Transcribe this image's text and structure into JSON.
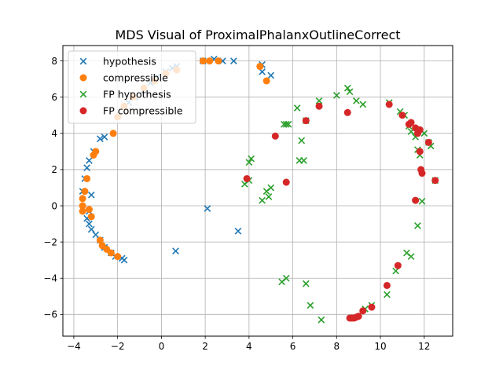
{
  "chart_data": {
    "type": "scatter",
    "title": "MDS Visual of ProximalPhalanxOutlineCorrect",
    "xlabel": "",
    "ylabel": "",
    "xlim": [
      -4.5,
      13.3
    ],
    "ylim": [
      -7.2,
      8.85
    ],
    "xticks": [
      -4,
      -2,
      0,
      2,
      4,
      6,
      8,
      10,
      12
    ],
    "yticks": [
      -6,
      -4,
      -2,
      0,
      2,
      4,
      6,
      8
    ],
    "xtick_labels": [
      "−4",
      "−2",
      "0",
      "2",
      "4",
      "6",
      "8",
      "10",
      "12"
    ],
    "ytick_labels": [
      "−6",
      "−4",
      "−2",
      "0",
      "2",
      "4",
      "6",
      "8"
    ],
    "grid": true,
    "legend_position": "top-left",
    "series": [
      {
        "name": "hypothesis",
        "marker": "x",
        "color": "#1f77b4",
        "points": [
          [
            -3.6,
            0.8
          ],
          [
            -3.5,
            1.5
          ],
          [
            -3.4,
            2.1
          ],
          [
            -3.3,
            2.5
          ],
          [
            -3.1,
            3.0
          ],
          [
            -2.8,
            3.7
          ],
          [
            -2.6,
            3.8
          ],
          [
            -3.2,
            0.6
          ],
          [
            -3.3,
            -0.3
          ],
          [
            -3.4,
            -0.7
          ],
          [
            -3.3,
            -1.0
          ],
          [
            -3.2,
            -1.3
          ],
          [
            -3.0,
            -1.6
          ],
          [
            -2.8,
            -1.9
          ],
          [
            -2.6,
            -2.3
          ],
          [
            -2.3,
            -2.6
          ],
          [
            -2.1,
            -2.8
          ],
          [
            -1.8,
            -2.9
          ],
          [
            -1.7,
            -3.0
          ],
          [
            -1.5,
            5.7
          ],
          [
            -1.2,
            6.0
          ],
          [
            -0.8,
            6.4
          ],
          [
            -0.5,
            6.8
          ],
          [
            -0.2,
            7.1
          ],
          [
            0.2,
            7.4
          ],
          [
            0.5,
            7.6
          ],
          [
            0.7,
            7.7
          ],
          [
            1.9,
            8.0
          ],
          [
            2.4,
            8.1
          ],
          [
            2.8,
            8.0
          ],
          [
            3.3,
            8.0
          ],
          [
            4.6,
            7.8
          ],
          [
            4.6,
            7.4
          ],
          [
            5.0,
            7.2
          ],
          [
            2.1,
            -0.15
          ],
          [
            3.5,
            -1.4
          ],
          [
            0.65,
            -2.5
          ]
        ]
      },
      {
        "name": "compressible",
        "marker": "o",
        "color": "#ff7f0e",
        "points": [
          [
            -3.6,
            0.4
          ],
          [
            -3.6,
            0.0
          ],
          [
            -3.6,
            -0.3
          ],
          [
            -3.5,
            0.8
          ],
          [
            -3.4,
            1.5
          ],
          [
            -3.3,
            -0.2
          ],
          [
            -3.2,
            -0.6
          ],
          [
            -3.1,
            2.8
          ],
          [
            -3.0,
            3.0
          ],
          [
            -2.8,
            -1.9
          ],
          [
            -2.7,
            -2.2
          ],
          [
            -2.5,
            -2.4
          ],
          [
            -2.3,
            -2.6
          ],
          [
            -2.0,
            -2.8
          ],
          [
            -2.2,
            4.0
          ],
          [
            -2.0,
            4.9
          ],
          [
            -1.7,
            5.5
          ],
          [
            -1.3,
            6.0
          ],
          [
            -0.8,
            6.5
          ],
          [
            -0.3,
            6.9
          ],
          [
            0.2,
            7.3
          ],
          [
            0.7,
            7.5
          ],
          [
            1.9,
            8.0
          ],
          [
            2.2,
            8.0
          ],
          [
            2.6,
            8.0
          ],
          [
            4.5,
            7.7
          ],
          [
            4.8,
            6.9
          ]
        ]
      },
      {
        "name": "FP hypothesis",
        "marker": "x",
        "color": "#2ca02c",
        "points": [
          [
            3.8,
            1.2
          ],
          [
            4.0,
            2.4
          ],
          [
            4.1,
            2.6
          ],
          [
            4.0,
            1.4
          ],
          [
            4.6,
            0.3
          ],
          [
            4.8,
            0.8
          ],
          [
            4.9,
            0.5
          ],
          [
            5.0,
            1.0
          ],
          [
            5.6,
            4.5
          ],
          [
            5.7,
            4.5
          ],
          [
            5.8,
            4.5
          ],
          [
            6.2,
            5.4
          ],
          [
            6.3,
            2.5
          ],
          [
            6.5,
            2.5
          ],
          [
            6.4,
            3.6
          ],
          [
            6.6,
            4.7
          ],
          [
            7.2,
            5.8
          ],
          [
            8.0,
            6.1
          ],
          [
            8.5,
            6.5
          ],
          [
            8.6,
            6.3
          ],
          [
            8.9,
            5.8
          ],
          [
            9.2,
            5.6
          ],
          [
            10.4,
            5.7
          ],
          [
            10.9,
            5.2
          ],
          [
            11.1,
            5.0
          ],
          [
            11.3,
            4.4
          ],
          [
            11.4,
            4.1
          ],
          [
            11.6,
            3.8
          ],
          [
            11.7,
            3.1
          ],
          [
            11.8,
            2.8
          ],
          [
            11.9,
            0.25
          ],
          [
            12.0,
            4.0
          ],
          [
            12.2,
            3.5
          ],
          [
            12.3,
            3.3
          ],
          [
            12.5,
            1.4
          ],
          [
            11.7,
            -1.1
          ],
          [
            11.2,
            -2.6
          ],
          [
            11.4,
            -2.8
          ],
          [
            10.7,
            -3.6
          ],
          [
            10.3,
            -4.9
          ],
          [
            9.6,
            -5.5
          ],
          [
            9.3,
            -5.7
          ],
          [
            8.7,
            -6.2
          ],
          [
            7.3,
            -6.3
          ],
          [
            6.8,
            -5.5
          ],
          [
            6.6,
            -4.3
          ],
          [
            5.7,
            -4.0
          ],
          [
            5.5,
            -4.2
          ]
        ]
      },
      {
        "name": "FP compressible",
        "marker": "o",
        "color": "#d62728",
        "points": [
          [
            3.9,
            1.5
          ],
          [
            5.2,
            3.85
          ],
          [
            5.7,
            1.3
          ],
          [
            6.6,
            4.7
          ],
          [
            7.2,
            5.5
          ],
          [
            8.5,
            5.15
          ],
          [
            10.4,
            5.6
          ],
          [
            11.0,
            5.0
          ],
          [
            11.3,
            4.5
          ],
          [
            11.4,
            4.6
          ],
          [
            11.6,
            4.3
          ],
          [
            11.7,
            4.0
          ],
          [
            11.8,
            4.2
          ],
          [
            11.8,
            3.0
          ],
          [
            11.85,
            2.0
          ],
          [
            11.9,
            1.8
          ],
          [
            12.2,
            3.5
          ],
          [
            12.5,
            1.4
          ],
          [
            11.6,
            0.3
          ],
          [
            10.8,
            -3.3
          ],
          [
            10.3,
            -4.4
          ],
          [
            9.6,
            -5.6
          ],
          [
            9.2,
            -5.8
          ],
          [
            9.0,
            -6.1
          ],
          [
            8.9,
            -6.15
          ],
          [
            8.8,
            -6.2
          ],
          [
            8.7,
            -6.2
          ],
          [
            8.6,
            -6.2
          ]
        ]
      }
    ]
  }
}
